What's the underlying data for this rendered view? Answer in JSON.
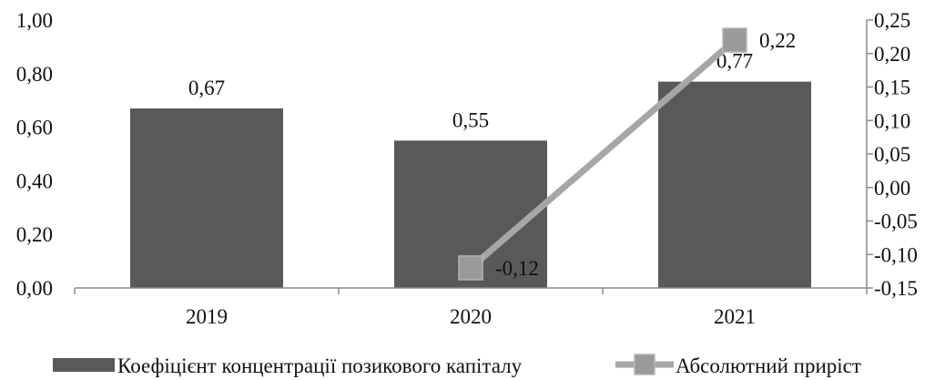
{
  "chart_data": {
    "type": "bar+line",
    "categories": [
      "2019",
      "2020",
      "2021"
    ],
    "series": [
      {
        "name": "Коефіцієнт концентрації позикового капіталу",
        "kind": "bar",
        "axis": "left",
        "values": [
          0.67,
          0.55,
          0.77
        ],
        "labels": [
          "0,67",
          "0,55",
          "0,77"
        ],
        "color": "#595959"
      },
      {
        "name": "Абсолютний приріст",
        "kind": "line",
        "axis": "right",
        "values": [
          null,
          -0.12,
          0.22
        ],
        "labels": [
          "",
          "-0,12",
          "0,22"
        ],
        "color": "#a6a6a6",
        "marker_color": "#9a9a9a"
      }
    ],
    "y_left": {
      "range": [
        0,
        1
      ],
      "ticks": [
        0,
        0.2,
        0.4,
        0.6,
        0.8,
        1.0
      ],
      "tick_labels": [
        "0,00",
        "0,20",
        "0,40",
        "0,60",
        "0,80",
        "1,00"
      ]
    },
    "y_right": {
      "range": [
        -0.15,
        0.25
      ],
      "ticks": [
        -0.15,
        -0.1,
        -0.05,
        0,
        0.05,
        0.1,
        0.15,
        0.2,
        0.25
      ],
      "tick_labels": [
        "-0,15",
        "-0,10",
        "-0,05",
        "0,00",
        "0,05",
        "0,10",
        "0,15",
        "0,20",
        "0,25"
      ]
    },
    "grid": false,
    "legend_position": "bottom",
    "title": "",
    "xlabel": "",
    "ylabel": ""
  }
}
